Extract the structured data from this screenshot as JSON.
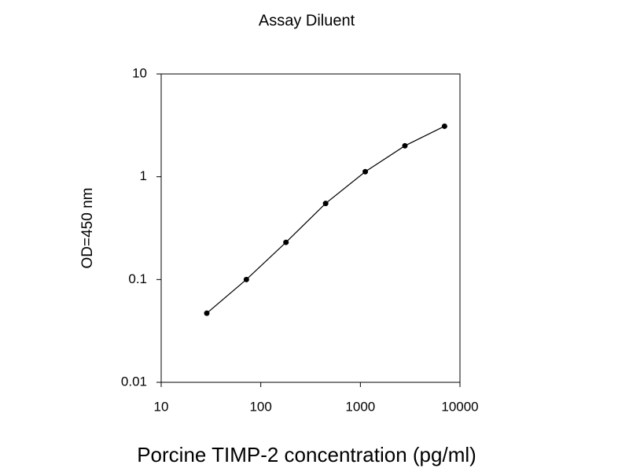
{
  "chart_data": {
    "type": "line",
    "title": "Assay Diluent",
    "x_label": "Porcine TIMP-2 concentration (pg/ml)",
    "y_label": "OD=450 nm",
    "x": [
      28.7,
      71.7,
      179,
      448,
      1120,
      2800,
      7000
    ],
    "values": [
      0.047,
      0.1,
      0.23,
      0.55,
      1.12,
      2.0,
      3.1
    ],
    "color": "#000000",
    "x_log": true,
    "y_log": true,
    "xlim": [
      10,
      10000
    ],
    "xticks": [
      10,
      100,
      1000,
      10000
    ],
    "ylim": [
      0.01,
      10
    ],
    "yticks": [
      0.01,
      0.1,
      1,
      10
    ]
  }
}
